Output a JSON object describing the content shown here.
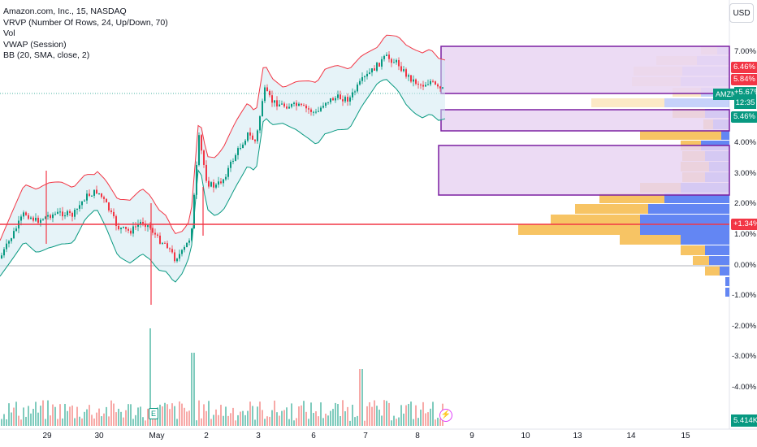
{
  "legend": {
    "symbol_line": "Amazon.com, Inc., 15, NASDAQ",
    "vrvp": "VRVP (Number Of Rows, 24, Up/Down, 70)",
    "vol": "Vol",
    "vwap": "VWAP (Session)",
    "bb": "BB (20, SMA, close, 2)"
  },
  "currency": "USD",
  "price_axis": [
    "7.00%",
    "4.00%",
    "3.00%",
    "2.00%",
    "1.00%",
    "0.00%",
    "-1.00%",
    "-2.00%",
    "-3.00%",
    "-4.00%"
  ],
  "tags": {
    "upper_band": "6.46%",
    "mid_band": "5.84%",
    "last_price": "+5.67%",
    "countdown": "12:35",
    "symbol": "AMZN",
    "lower_band": "5.46%",
    "vwap_line": "+1.34%",
    "volume": "5.414K"
  },
  "time_axis": [
    "29",
    "30",
    "May",
    "2",
    "3",
    "6",
    "7",
    "8",
    "9",
    "10",
    "13",
    "14",
    "15"
  ],
  "markers": {
    "earnings": "E",
    "lightning": "⚡"
  },
  "colors": {
    "up": "#089981",
    "down": "#f23645",
    "bb_band": "#f23645",
    "bb_lower": "#089981",
    "vwap": "#f23645",
    "vp_up": "#5b7ff2",
    "vp_down": "#f7c15c",
    "rect_stroke": "#7b1fa2",
    "rect_fill": "#e9d5f2"
  }
}
